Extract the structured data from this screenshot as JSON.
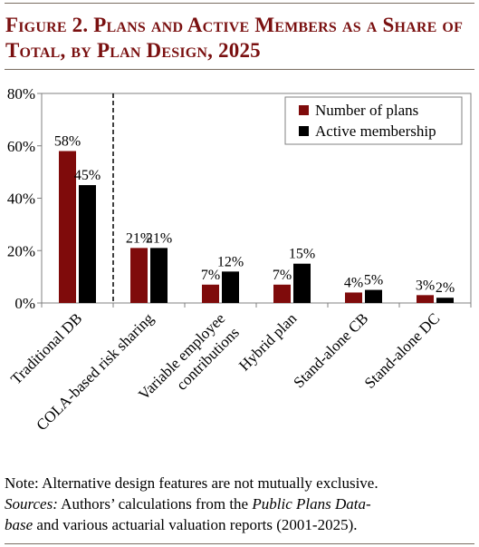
{
  "title": {
    "line1": "Figure 2. Plans and Active Members as a Share of",
    "line2": "Total, by Plan Design, 2025"
  },
  "note": {
    "line1": "Note: Alternative design features are not mutually exclusive.",
    "sources_label": "Sources:",
    "sources_text_1": " Authors’ calculations from the ",
    "sources_ital_1": "Public Plans Data-",
    "sources_ital_2": "base",
    "sources_text_2": " and various actuarial valuation reports (2001-2025)."
  },
  "colors": {
    "title": "#7a1010",
    "number_of_plans": "#7f0b0b",
    "active_membership": "#000000",
    "axis": "#808080"
  },
  "chart_data": {
    "type": "bar",
    "categories": [
      "Traditional DB",
      "COLA-based risk sharing",
      "Variable employee contributions",
      "Hybrid plan",
      "Stand-alone CB",
      "Stand-alone DC"
    ],
    "category_lines": [
      [
        "Traditional DB"
      ],
      [
        "COLA-based risk sharing"
      ],
      [
        "Variable employee",
        "contributions"
      ],
      [
        "Hybrid plan"
      ],
      [
        "Stand-alone CB"
      ],
      [
        "Stand-alone DC"
      ]
    ],
    "series": [
      {
        "name": "Number of plans",
        "values": [
          58,
          21,
          7,
          7,
          4,
          3
        ],
        "labels": [
          "58%",
          "21%",
          "7%",
          "7%",
          "4%",
          "3%"
        ]
      },
      {
        "name": "Active membership",
        "values": [
          45,
          21,
          12,
          15,
          5,
          2
        ],
        "labels": [
          "45%",
          "21%",
          "12%",
          "15%",
          "5%",
          "2%"
        ]
      }
    ],
    "yticks": [
      0,
      20,
      40,
      60,
      80
    ],
    "ytick_labels": [
      "0%",
      "20%",
      "40%",
      "60%",
      "80%"
    ],
    "ylim": [
      0,
      80
    ],
    "legend_position": "top-right",
    "divider_after_category": 0
  }
}
